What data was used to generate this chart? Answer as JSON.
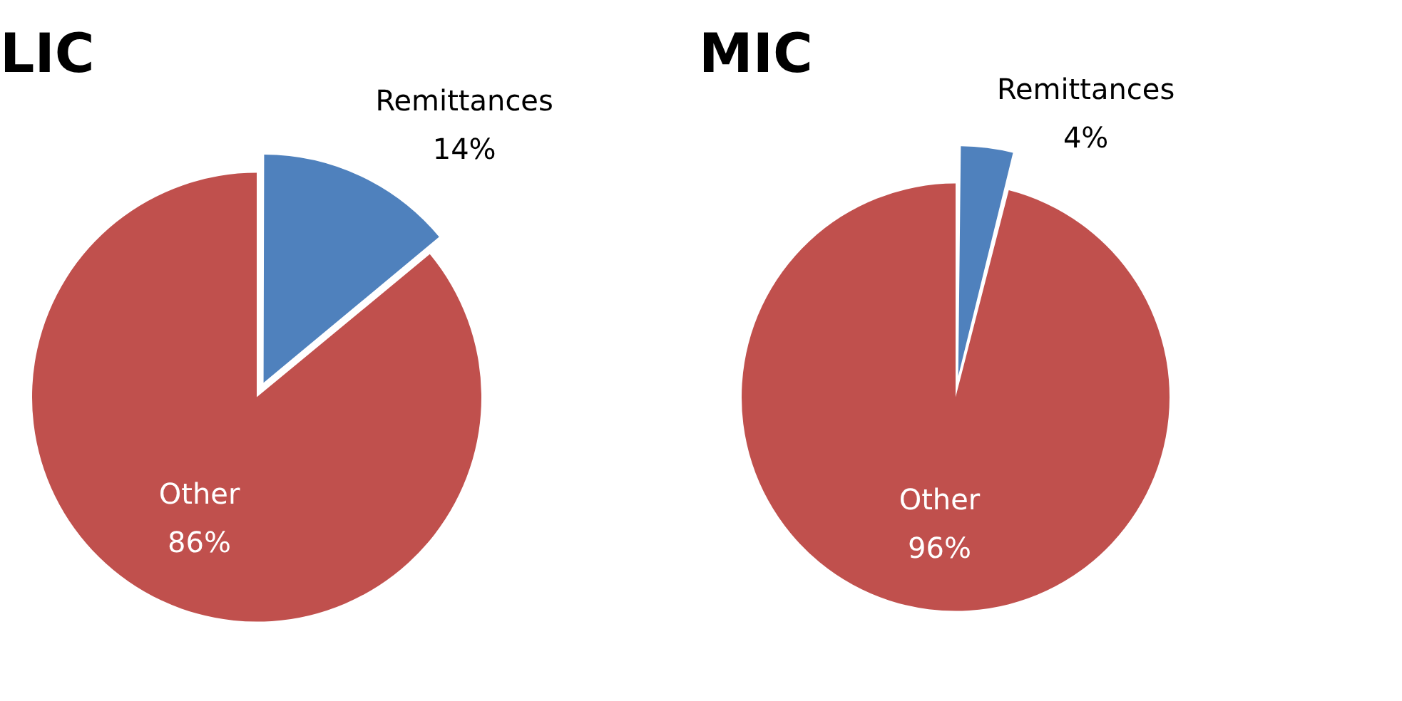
{
  "chart_data": [
    {
      "type": "pie",
      "title": "LIC",
      "categories": [
        "Remittances",
        "Other"
      ],
      "values": [
        14,
        86
      ],
      "colors": [
        "#4f81bd",
        "#c0504d"
      ],
      "data_labels": true,
      "value_labels": [
        "14%",
        "86%"
      ]
    },
    {
      "type": "pie",
      "title": "MIC",
      "categories": [
        "Remittances",
        "Other"
      ],
      "values": [
        4,
        96
      ],
      "colors": [
        "#4f81bd",
        "#c0504d"
      ],
      "data_labels": true,
      "value_labels": [
        "4%",
        "96%"
      ]
    }
  ]
}
